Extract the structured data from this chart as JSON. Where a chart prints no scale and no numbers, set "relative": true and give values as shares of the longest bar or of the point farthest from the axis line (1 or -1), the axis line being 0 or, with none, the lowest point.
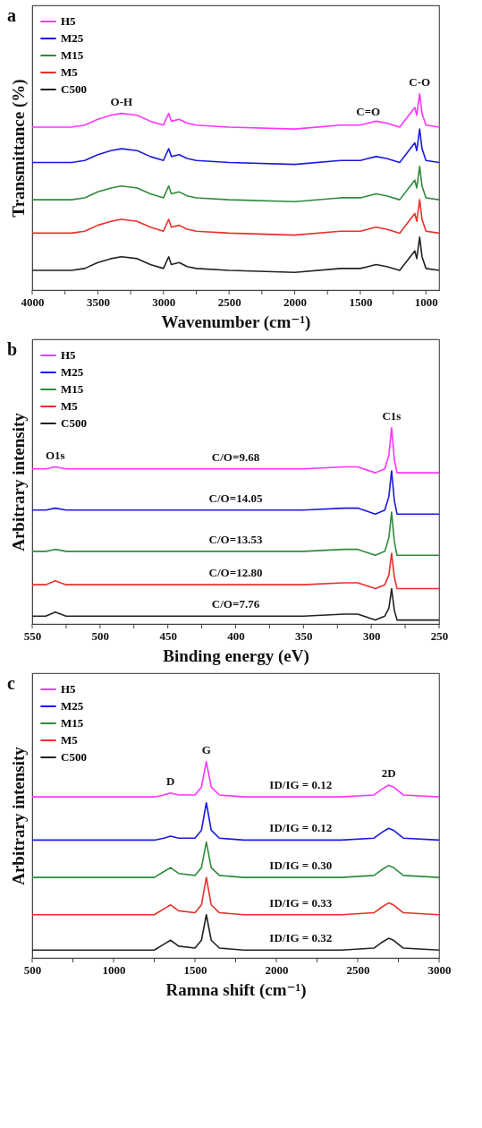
{
  "chart_data": [
    {
      "type": "line",
      "title": "a",
      "xlabel": "Wavenumber (cm⁻¹)",
      "ylabel": "Transmittance (%)",
      "relative": true,
      "legend": "top left",
      "xlim": [
        4000,
        900
      ],
      "xticks": [
        4000,
        {
          "value": 3750,
          "label": null
        },
        3500,
        {
          "value": 3250,
          "label": null
        },
        3000,
        {
          "value": 2750,
          "label": null
        },
        2500,
        {
          "value": 2250,
          "label": null
        },
        2000,
        {
          "value": 1750,
          "label": null
        },
        1500,
        {
          "value": 1250,
          "label": null
        },
        1000
      ],
      "x": [
        4000,
        3700,
        3600,
        3500,
        3400,
        3320,
        3200,
        3100,
        3000,
        2960,
        2940,
        2880,
        2820,
        2750,
        2500,
        2000,
        1650,
        1500,
        1440,
        1380,
        1300,
        1200,
        1085,
        1070,
        1048,
        1030,
        1000,
        900
      ],
      "series": [
        {
          "name": "H5",
          "color": "#ff33ff",
          "values": [
            0.83,
            0.83,
            0.84,
            0.87,
            0.89,
            0.9,
            0.89,
            0.86,
            0.84,
            0.9,
            0.86,
            0.87,
            0.85,
            0.84,
            0.83,
            0.82,
            0.84,
            0.84,
            0.85,
            0.86,
            0.85,
            0.83,
            0.93,
            0.89,
            1.0,
            0.9,
            0.84,
            0.83
          ]
        },
        {
          "name": "M25",
          "color": "#1a1ae0",
          "values": [
            0.65,
            0.65,
            0.66,
            0.69,
            0.71,
            0.72,
            0.71,
            0.68,
            0.66,
            0.72,
            0.68,
            0.69,
            0.67,
            0.66,
            0.65,
            0.64,
            0.66,
            0.66,
            0.67,
            0.68,
            0.67,
            0.65,
            0.75,
            0.71,
            0.82,
            0.72,
            0.66,
            0.65
          ]
        },
        {
          "name": "M15",
          "color": "#2e8b3a",
          "values": [
            0.46,
            0.46,
            0.47,
            0.5,
            0.52,
            0.53,
            0.52,
            0.49,
            0.47,
            0.53,
            0.49,
            0.5,
            0.48,
            0.47,
            0.46,
            0.45,
            0.47,
            0.47,
            0.48,
            0.49,
            0.48,
            0.46,
            0.56,
            0.52,
            0.63,
            0.53,
            0.47,
            0.46
          ]
        },
        {
          "name": "M5",
          "color": "#e8302a",
          "values": [
            0.29,
            0.29,
            0.3,
            0.33,
            0.35,
            0.36,
            0.35,
            0.32,
            0.3,
            0.36,
            0.32,
            0.33,
            0.31,
            0.3,
            0.29,
            0.28,
            0.3,
            0.3,
            0.31,
            0.32,
            0.31,
            0.29,
            0.39,
            0.35,
            0.46,
            0.36,
            0.3,
            0.29
          ]
        },
        {
          "name": "C500",
          "color": "#222222",
          "values": [
            0.1,
            0.1,
            0.11,
            0.14,
            0.16,
            0.17,
            0.16,
            0.13,
            0.11,
            0.17,
            0.13,
            0.14,
            0.12,
            0.11,
            0.1,
            0.09,
            0.11,
            0.11,
            0.12,
            0.13,
            0.12,
            0.1,
            0.2,
            0.16,
            0.27,
            0.17,
            0.11,
            0.1
          ]
        }
      ],
      "annotations": [
        {
          "text": "O-H",
          "x": 3320,
          "y": 0.9
        },
        {
          "text": "C=O",
          "x": 1440,
          "y": 0.85
        },
        {
          "text": "C-O",
          "x": 1048,
          "y": 1.0
        }
      ]
    },
    {
      "type": "line",
      "title": "b",
      "xlabel": "Binding energy (eV)",
      "ylabel": "Arbitrary intensity",
      "relative": true,
      "legend": "top left",
      "xlim": [
        550,
        250
      ],
      "xticks": [
        550,
        {
          "value": 525,
          "label": null
        },
        500,
        {
          "value": 475,
          "label": null
        },
        450,
        {
          "value": 425,
          "label": null
        },
        400,
        {
          "value": 375,
          "label": null
        },
        350,
        {
          "value": 325,
          "label": null
        },
        300,
        {
          "value": 275,
          "label": null
        },
        250
      ],
      "x": [
        550,
        540,
        533,
        525,
        500,
        450,
        400,
        350,
        320,
        310,
        297,
        290,
        287,
        285,
        283,
        281,
        275,
        250
      ],
      "series": [
        {
          "name": "H5",
          "color": "#ff33ff",
          "values": [
            0.79,
            0.79,
            0.8,
            0.79,
            0.79,
            0.79,
            0.79,
            0.79,
            0.8,
            0.8,
            0.77,
            0.79,
            0.86,
            1.0,
            0.84,
            0.77,
            0.77,
            0.77
          ]
        },
        {
          "name": "M25",
          "color": "#1a1ae0",
          "values": [
            0.58,
            0.58,
            0.59,
            0.58,
            0.58,
            0.58,
            0.58,
            0.58,
            0.59,
            0.59,
            0.56,
            0.58,
            0.65,
            0.78,
            0.63,
            0.56,
            0.56,
            0.56
          ]
        },
        {
          "name": "M15",
          "color": "#2e8b3a",
          "values": [
            0.37,
            0.37,
            0.38,
            0.37,
            0.37,
            0.37,
            0.37,
            0.37,
            0.38,
            0.38,
            0.35,
            0.37,
            0.44,
            0.57,
            0.42,
            0.35,
            0.35,
            0.35
          ]
        },
        {
          "name": "M5",
          "color": "#e8302a",
          "values": [
            0.2,
            0.2,
            0.22,
            0.2,
            0.2,
            0.2,
            0.2,
            0.2,
            0.21,
            0.21,
            0.18,
            0.2,
            0.25,
            0.36,
            0.24,
            0.18,
            0.18,
            0.18
          ]
        },
        {
          "name": "C500",
          "color": "#222222",
          "values": [
            0.04,
            0.04,
            0.06,
            0.04,
            0.04,
            0.04,
            0.04,
            0.04,
            0.05,
            0.05,
            0.02,
            0.04,
            0.08,
            0.18,
            0.07,
            0.02,
            0.02,
            0.02
          ]
        }
      ],
      "annotations": [
        {
          "text": "O1s",
          "x": 533,
          "y": 0.8
        },
        {
          "text": "C1s",
          "x": 285,
          "y": 1.0
        },
        {
          "text": "C/O=9.68",
          "x": 400,
          "y": 0.79
        },
        {
          "text": "C/O=14.05",
          "x": 400,
          "y": 0.58
        },
        {
          "text": "C/O=13.53",
          "x": 400,
          "y": 0.37
        },
        {
          "text": "C/O=12.80",
          "x": 400,
          "y": 0.2
        },
        {
          "text": "C/O=7.76",
          "x": 400,
          "y": 0.04
        }
      ]
    },
    {
      "type": "line",
      "title": "c",
      "xlabel": "Ramna shift (cm⁻¹)",
      "ylabel": "Arbitrary intensity",
      "relative": true,
      "legend": "top left",
      "xlim": [
        500,
        3000
      ],
      "xticks": [
        500,
        {
          "value": 750,
          "label": null
        },
        1000,
        {
          "value": 1250,
          "label": null
        },
        1500,
        {
          "value": 1750,
          "label": null
        },
        2000,
        {
          "value": 2250,
          "label": null
        },
        2500,
        {
          "value": 2750,
          "label": null
        },
        3000
      ],
      "x": [
        500,
        1000,
        1250,
        1310,
        1350,
        1400,
        1500,
        1540,
        1570,
        1600,
        1650,
        1800,
        2150,
        2400,
        2600,
        2650,
        2690,
        2720,
        2780,
        3000
      ],
      "series": [
        {
          "name": "H5",
          "color": "#ff33ff",
          "values": [
            0.82,
            0.82,
            0.82,
            0.83,
            0.84,
            0.83,
            0.83,
            0.87,
            1.0,
            0.87,
            0.83,
            0.82,
            0.82,
            0.82,
            0.83,
            0.86,
            0.88,
            0.87,
            0.83,
            0.82
          ]
        },
        {
          "name": "M25",
          "color": "#1a1ae0",
          "values": [
            0.6,
            0.6,
            0.6,
            0.61,
            0.62,
            0.61,
            0.61,
            0.65,
            0.79,
            0.65,
            0.61,
            0.6,
            0.6,
            0.6,
            0.61,
            0.64,
            0.66,
            0.65,
            0.61,
            0.6
          ]
        },
        {
          "name": "M15",
          "color": "#2e8b3a",
          "values": [
            0.41,
            0.41,
            0.41,
            0.44,
            0.46,
            0.43,
            0.42,
            0.46,
            0.59,
            0.46,
            0.42,
            0.41,
            0.41,
            0.41,
            0.42,
            0.45,
            0.47,
            0.46,
            0.42,
            0.41
          ]
        },
        {
          "name": "M5",
          "color": "#e8302a",
          "values": [
            0.22,
            0.22,
            0.22,
            0.25,
            0.27,
            0.24,
            0.23,
            0.27,
            0.41,
            0.27,
            0.23,
            0.22,
            0.22,
            0.22,
            0.23,
            0.26,
            0.28,
            0.27,
            0.23,
            0.22
          ]
        },
        {
          "name": "C500",
          "color": "#222222",
          "values": [
            0.04,
            0.04,
            0.04,
            0.07,
            0.09,
            0.06,
            0.05,
            0.09,
            0.22,
            0.09,
            0.05,
            0.04,
            0.04,
            0.04,
            0.05,
            0.08,
            0.1,
            0.09,
            0.05,
            0.04
          ]
        }
      ],
      "annotations": [
        {
          "text": "D",
          "x": 1350,
          "y": 0.84
        },
        {
          "text": "G",
          "x": 1570,
          "y": 1.0
        },
        {
          "text": "2D",
          "x": 2690,
          "y": 0.88
        },
        {
          "text": "ID/IG = 0.12",
          "x": 2150,
          "y": 0.82
        },
        {
          "text": "ID/IG = 0.12",
          "x": 2150,
          "y": 0.6
        },
        {
          "text": "ID/IG = 0.30",
          "x": 2150,
          "y": 0.41
        },
        {
          "text": "ID/IG = 0.33",
          "x": 2150,
          "y": 0.22
        },
        {
          "text": "ID/IG = 0.32",
          "x": 2150,
          "y": 0.04
        }
      ]
    }
  ]
}
